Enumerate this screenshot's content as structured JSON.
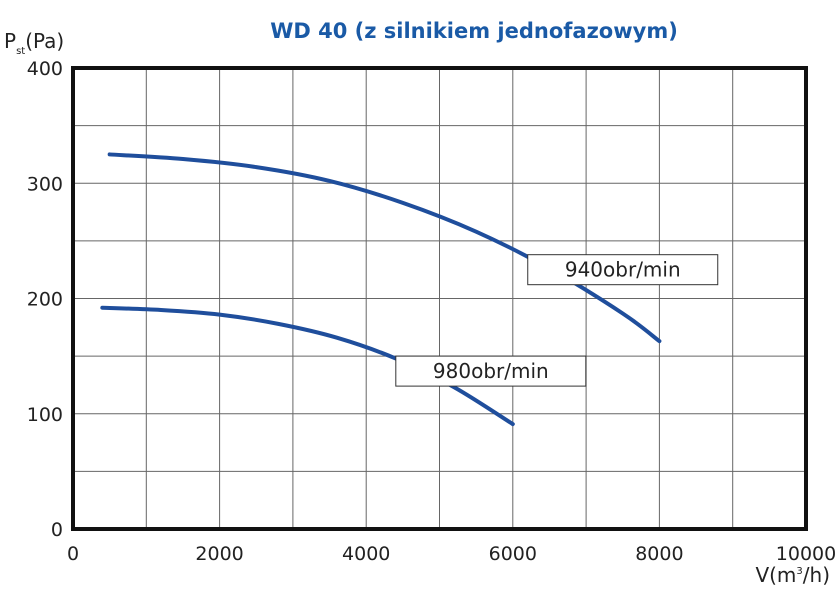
{
  "chart_data": {
    "type": "line",
    "title": "WD 40 (z silnikiem jednofazowym)",
    "ylabel": {
      "main": "P",
      "sub": "st",
      "unit": "(Pa)"
    },
    "xlabel": {
      "main": "V(m",
      "sup": "3",
      "unit": "/h)"
    },
    "xlim": [
      0,
      10000
    ],
    "ylim": [
      0,
      400
    ],
    "x_ticks": [
      {
        "value": 0,
        "label": "0"
      },
      {
        "value": 2000,
        "label": "2000"
      },
      {
        "value": 4000,
        "label": "4000"
      },
      {
        "value": 6000,
        "label": "6000"
      },
      {
        "value": 8000,
        "label": "8000"
      },
      {
        "value": 10000,
        "label": "10000"
      }
    ],
    "y_ticks": [
      {
        "value": 0,
        "label": "0"
      },
      {
        "value": 100,
        "label": "100"
      },
      {
        "value": 200,
        "label": "200"
      },
      {
        "value": 300,
        "label": "300"
      },
      {
        "value": 400,
        "label": "400"
      }
    ],
    "grid": true,
    "line_color": "#1f4e9c",
    "series": [
      {
        "name": "940obr/min",
        "x": [
          500,
          1500,
          2500,
          3500,
          4500,
          5500,
          6500,
          7500,
          8000
        ],
        "y": [
          325,
          321,
          314,
          302,
          283,
          258,
          226,
          187,
          163
        ]
      },
      {
        "name": "980obr/min",
        "x": [
          400,
          1200,
          2000,
          2800,
          3600,
          4400,
          5200,
          6000
        ],
        "y": [
          192,
          190,
          186,
          178,
          166,
          148,
          123,
          91
        ]
      }
    ]
  }
}
